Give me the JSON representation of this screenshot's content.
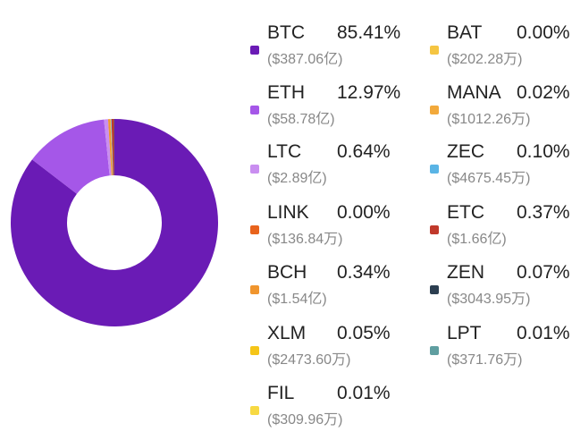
{
  "chart_data": {
    "type": "pie",
    "style": "donut",
    "slices": [
      {
        "name": "BTC",
        "percent": 85.41,
        "amount": "($387.06亿)",
        "color": "#6a1bb5"
      },
      {
        "name": "ETH",
        "percent": 12.97,
        "amount": "($58.78亿)",
        "color": "#a557e8"
      },
      {
        "name": "LTC",
        "percent": 0.64,
        "amount": "($2.89亿)",
        "color": "#c98ef0"
      },
      {
        "name": "LINK",
        "percent": 0.0,
        "amount": "($136.84万)",
        "color": "#e8631c"
      },
      {
        "name": "BCH",
        "percent": 0.34,
        "amount": "($1.54亿)",
        "color": "#f0952e"
      },
      {
        "name": "XLM",
        "percent": 0.05,
        "amount": "($2473.60万)",
        "color": "#f5c518"
      },
      {
        "name": "FIL",
        "percent": 0.01,
        "amount": "($309.96万)",
        "color": "#f7d943"
      },
      {
        "name": "BAT",
        "percent": 0.0,
        "amount": "($202.28万)",
        "color": "#f5c542"
      },
      {
        "name": "MANA",
        "percent": 0.02,
        "amount": "($1012.26万)",
        "color": "#f2a93b"
      },
      {
        "name": "ZEC",
        "percent": 0.1,
        "amount": "($4675.45万)",
        "color": "#5ab4e5"
      },
      {
        "name": "ETC",
        "percent": 0.37,
        "amount": "($1.66亿)",
        "color": "#c0392b"
      },
      {
        "name": "ZEN",
        "percent": 0.07,
        "amount": "($3043.95万)",
        "color": "#2c3e50"
      },
      {
        "name": "LPT",
        "percent": 0.01,
        "amount": "($371.76万)",
        "color": "#5f9ea0"
      }
    ],
    "legend_placement": "right"
  },
  "legend": [
    {
      "name": "BTC",
      "percent": "85.41%",
      "amount": "($387.06亿)",
      "color": "#6a1bb5"
    },
    {
      "name": "ETH",
      "percent": "12.97%",
      "amount": "($58.78亿)",
      "color": "#a557e8"
    },
    {
      "name": "LTC",
      "percent": "0.64%",
      "amount": "($2.89亿)",
      "color": "#c98ef0"
    },
    {
      "name": "LINK",
      "percent": "0.00%",
      "amount": "($136.84万)",
      "color": "#e8631c"
    },
    {
      "name": "BCH",
      "percent": "0.34%",
      "amount": "($1.54亿)",
      "color": "#f0952e"
    },
    {
      "name": "XLM",
      "percent": "0.05%",
      "amount": "($2473.60万)",
      "color": "#f5c518"
    },
    {
      "name": "FIL",
      "percent": "0.01%",
      "amount": "($309.96万)",
      "color": "#f7d943"
    },
    {
      "name": "BAT",
      "percent": "0.00%",
      "amount": "($202.28万)",
      "color": "#f5c542"
    },
    {
      "name": "MANA",
      "percent": "0.02%",
      "amount": "($1012.26万)",
      "color": "#f2a93b"
    },
    {
      "name": "ZEC",
      "percent": "0.10%",
      "amount": "($4675.45万)",
      "color": "#5ab4e5"
    },
    {
      "name": "ETC",
      "percent": "0.37%",
      "amount": "($1.66亿)",
      "color": "#c0392b"
    },
    {
      "name": "ZEN",
      "percent": "0.07%",
      "amount": "($3043.95万)",
      "color": "#2c3e50"
    },
    {
      "name": "LPT",
      "percent": "0.01%",
      "amount": "($371.76万)",
      "color": "#5f9ea0"
    }
  ]
}
